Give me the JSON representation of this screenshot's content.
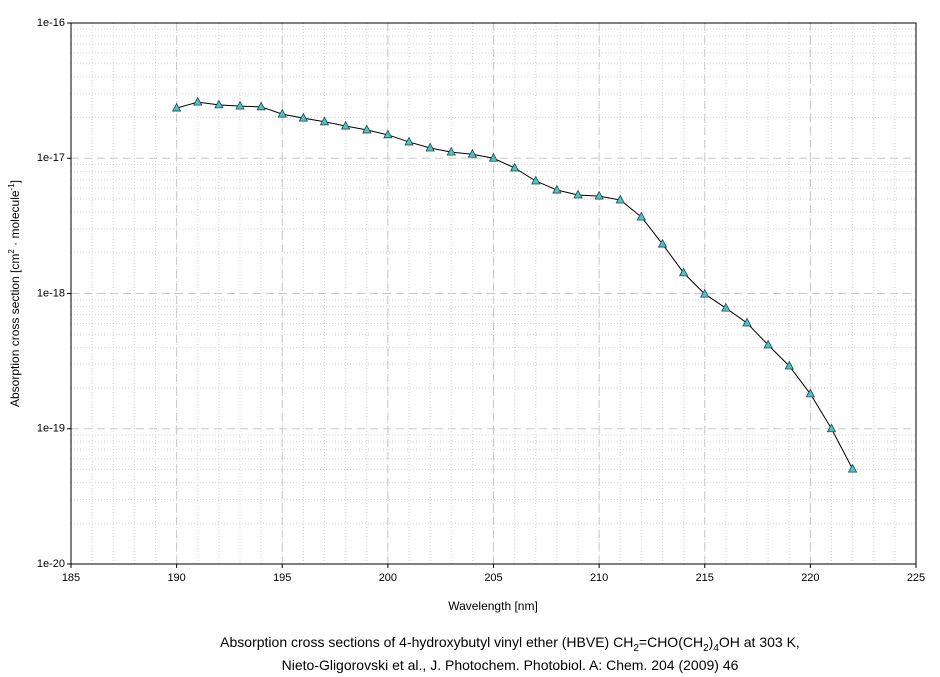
{
  "chart_data": {
    "type": "line",
    "x_label": "Wavelength [nm]",
    "y_label": [
      "Absorption cross section [cm",
      "2",
      " · molecule",
      "-1",
      "]"
    ],
    "caption": [
      [
        "Absorption cross sections of 4-hydroxybutyl vinyl ether (HBVE) CH",
        "2",
        "=CHO(CH",
        "2",
        ")",
        "4",
        "OH at 303 K,"
      ],
      [
        "Nieto-Gligorovski et al., J. Photochem. Photobiol. A: Chem. 204 (2009) 46"
      ]
    ],
    "x": [
      190,
      191,
      192,
      193,
      194,
      195,
      196,
      197,
      198,
      199,
      200,
      201,
      202,
      203,
      204,
      205,
      206,
      207,
      208,
      209,
      210,
      211,
      212,
      213,
      214,
      215,
      216,
      217,
      218,
      219,
      220,
      221,
      222
    ],
    "series": [
      {
        "name": "HBVE",
        "color": "#4fc3c9",
        "values": [
          2.35e-17,
          2.6e-17,
          2.48e-17,
          2.43e-17,
          2.4e-17,
          2.12e-17,
          1.98e-17,
          1.86e-17,
          1.73e-17,
          1.62e-17,
          1.49e-17,
          1.32e-17,
          1.19e-17,
          1.11e-17,
          1.07e-17,
          1e-17,
          8.47e-18,
          6.79e-18,
          5.82e-18,
          5.35e-18,
          5.25e-18,
          4.91e-18,
          3.68e-18,
          2.32e-18,
          1.42e-18,
          9.9e-19,
          7.8e-19,
          6.05e-19,
          4.16e-19,
          2.91e-19,
          1.81e-19,
          1e-19,
          5.03e-20
        ]
      }
    ],
    "xlim": [
      185,
      225
    ],
    "xticks": [
      185,
      190,
      195,
      200,
      205,
      210,
      215,
      220,
      225
    ],
    "ylim": [
      1e-20,
      1e-16
    ],
    "yticks": [
      1e-20,
      1e-19,
      1e-18,
      1e-17,
      1e-16
    ],
    "log_y": true,
    "grid": true
  }
}
